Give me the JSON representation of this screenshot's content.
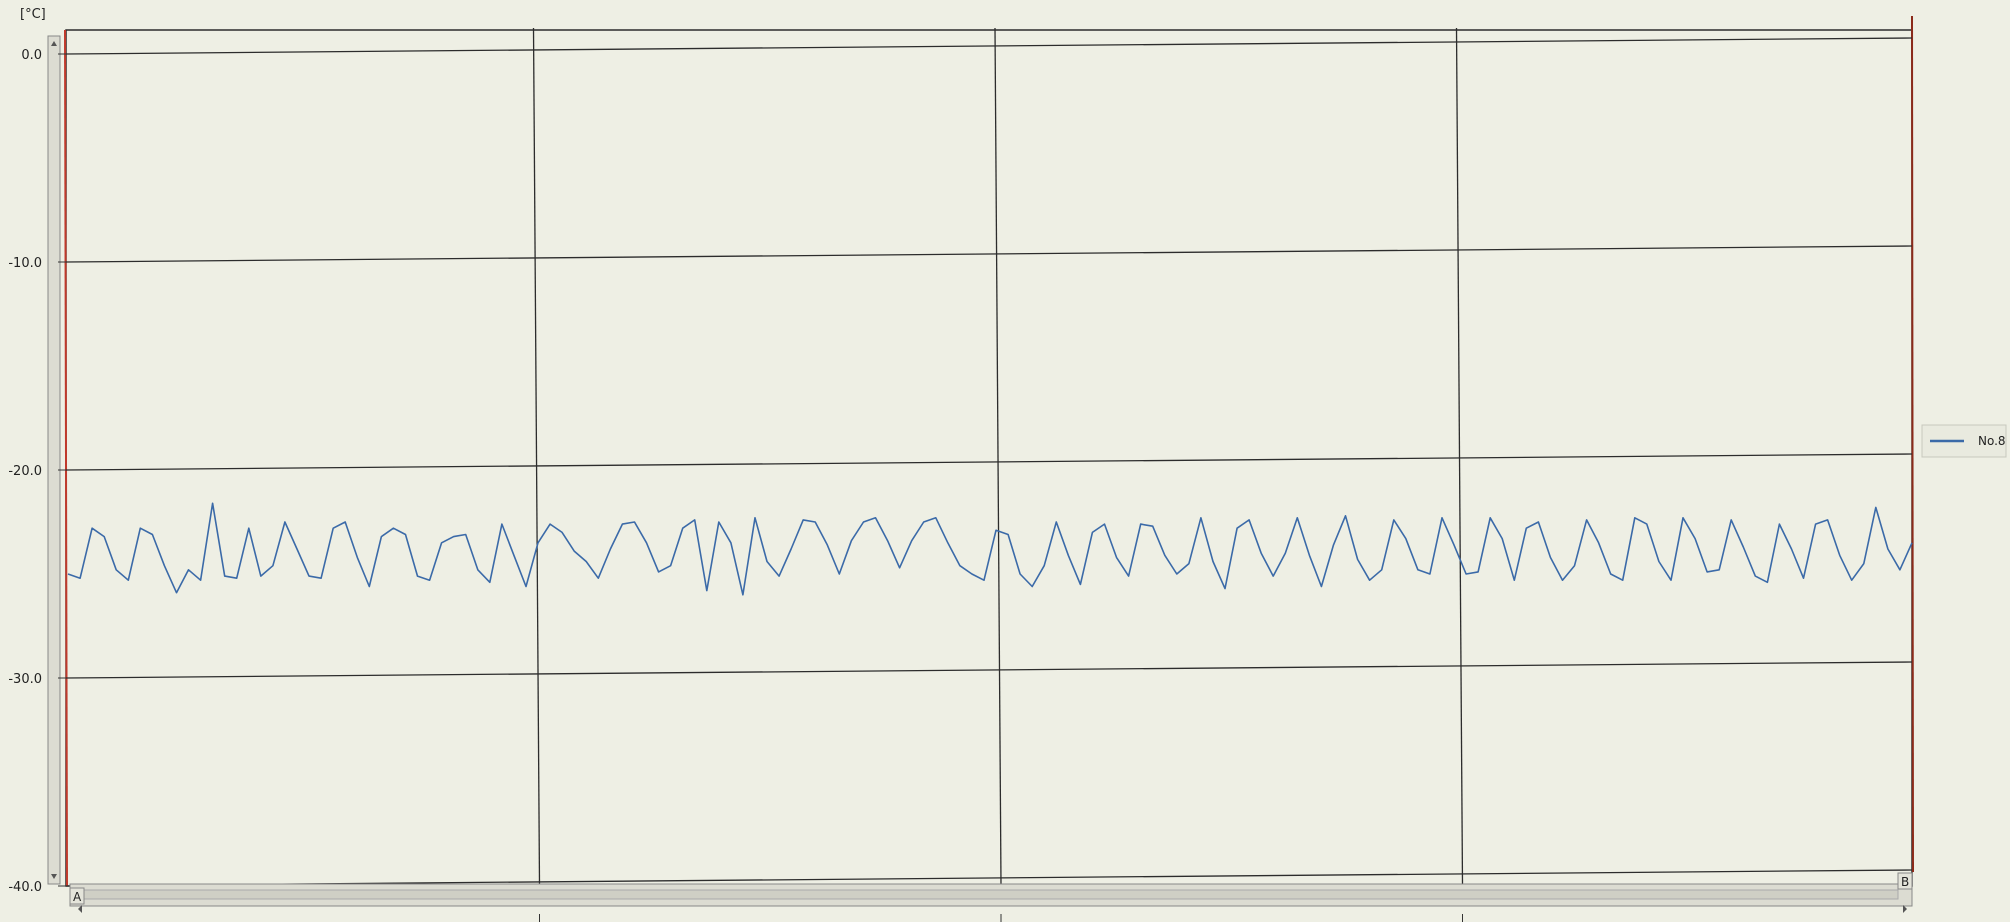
{
  "chart_data": {
    "type": "line",
    "y_unit": "[°C]",
    "ylim": [
      -40,
      0
    ],
    "y_ticks": [
      0,
      -10,
      -20,
      -30,
      -40
    ],
    "y_tick_labels": [
      "0.0",
      "-10.0",
      "-20.0",
      "-30.0",
      "-40.0"
    ],
    "x_gridline_count": 3,
    "grid": true,
    "legend_position": "right",
    "line_color": "#3b6aa8",
    "series": [
      {
        "name": "No.8",
        "color": "#3b6aa8",
        "values": [
          -25.0,
          -25.2,
          -22.8,
          -23.2,
          -24.8,
          -25.3,
          -22.8,
          -23.1,
          -24.6,
          -25.9,
          -24.8,
          -25.3,
          -21.6,
          -25.1,
          -25.2,
          -22.8,
          -25.1,
          -24.6,
          -22.5,
          -23.8,
          -25.1,
          -25.2,
          -22.8,
          -22.5,
          -24.2,
          -25.6,
          -23.2,
          -22.8,
          -23.1,
          -25.1,
          -25.3,
          -23.5,
          -23.2,
          -23.1,
          -24.8,
          -25.4,
          -22.6,
          -24.1,
          -25.6,
          -23.5,
          -22.6,
          -23.0,
          -23.9,
          -24.4,
          -25.2,
          -23.8,
          -22.6,
          -22.5,
          -23.5,
          -24.9,
          -24.6,
          -22.8,
          -22.4,
          -25.8,
          -22.5,
          -23.5,
          -26.0,
          -22.3,
          -24.4,
          -25.1,
          -23.8,
          -22.4,
          -22.5,
          -23.6,
          -25.0,
          -23.4,
          -22.5,
          -22.3,
          -23.4,
          -24.7,
          -23.4,
          -22.5,
          -22.3,
          -23.5,
          -24.6,
          -25.0,
          -25.3,
          -22.9,
          -23.1,
          -25.0,
          -25.6,
          -24.6,
          -22.5,
          -24.1,
          -25.5,
          -23.0,
          -22.6,
          -24.2,
          -25.1,
          -22.6,
          -22.7,
          -24.1,
          -25.0,
          -24.5,
          -22.3,
          -24.4,
          -25.7,
          -22.8,
          -22.4,
          -24.0,
          -25.1,
          -24.0,
          -22.3,
          -24.1,
          -25.6,
          -23.6,
          -22.2,
          -24.3,
          -25.3,
          -24.8,
          -22.4,
          -23.3,
          -24.8,
          -25.0,
          -22.3,
          -23.6,
          -25.0,
          -24.9,
          -22.3,
          -23.3,
          -25.3,
          -22.8,
          -22.5,
          -24.2,
          -25.3,
          -24.6,
          -22.4,
          -23.5,
          -25.0,
          -25.3,
          -22.3,
          -22.6,
          -24.4,
          -25.3,
          -22.3,
          -23.3,
          -24.9,
          -24.8,
          -22.4,
          -23.7,
          -25.1,
          -25.4,
          -22.6,
          -23.8,
          -25.2,
          -22.6,
          -22.4,
          -24.1,
          -25.3,
          -24.5,
          -21.8,
          -23.8,
          -24.8,
          -23.5
        ]
      }
    ]
  },
  "chart": {
    "unit": "[°C]",
    "legend_label": "No.8",
    "marker_a": "A",
    "marker_b": "B",
    "colors": {
      "background": "#eeefe4",
      "grid": "#2c2c2c",
      "line": "#3b6aa8",
      "cursor_a": "#c0392b",
      "cursor_b": "#8b2a1a"
    }
  }
}
